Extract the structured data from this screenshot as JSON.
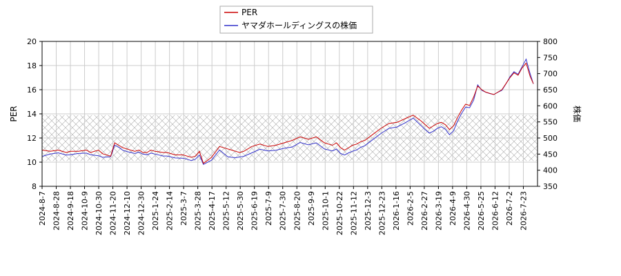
{
  "chart_data": {
    "type": "line",
    "legend": {
      "placement": "top-center"
    },
    "grid": true,
    "band": {
      "axis": "left",
      "from": 10.1,
      "to": 13.9,
      "pattern": "crosshatch"
    },
    "left_axis": {
      "label": "PER",
      "range": [
        8,
        20
      ],
      "ticks": [
        "8",
        "10",
        "12",
        "14",
        "16",
        "18",
        "20"
      ]
    },
    "right_axis": {
      "label": "株価",
      "range": [
        350,
        800
      ],
      "ticks": [
        "350",
        "400",
        "450",
        "500",
        "550",
        "600",
        "650",
        "700",
        "750",
        "800"
      ]
    },
    "x_ticks": [
      "2024-8-7",
      "2024-8-28",
      "2024-9-18",
      "2024-10-9",
      "2024-10-30",
      "2024-11-20",
      "2024-12-10",
      "2024-12-30",
      "2025-1-24",
      "2025-2-14",
      "2025-3-7",
      "2025-3-28",
      "2025-4-17",
      "2025-5-12",
      "2025-5-30",
      "2025-6-19",
      "2025-7-9",
      "2025-7-30",
      "2025-8-20",
      "2025-9-9",
      "2025-10-1",
      "2025-10-22",
      "2025-11-12",
      "2025-12-3",
      "2025-12-23",
      "2026-1-16",
      "2026-2-5",
      "2026-2-27",
      "2026-3-19",
      "2026-4-9",
      "2026-4-30",
      "2026-5-25",
      "2026-6-12",
      "2026-7-2",
      "2026-7-23"
    ],
    "series": [
      {
        "name": "PER",
        "axis": "left",
        "color": "#cc0000",
        "x": [
          0,
          10,
          20,
          30,
          35,
          45,
          55,
          60,
          70,
          75,
          85,
          90,
          95,
          100,
          105,
          115,
          120,
          125,
          130,
          135,
          140,
          150,
          155,
          165,
          175,
          180,
          185,
          190,
          195,
          200,
          210,
          220,
          230,
          235,
          240,
          245,
          250,
          260,
          270,
          280,
          290,
          300,
          310,
          320,
          330,
          340,
          350,
          355,
          360,
          365,
          370,
          375,
          380,
          385,
          390,
          395,
          400,
          410,
          420,
          430,
          440,
          450,
          460,
          470,
          475,
          480,
          485,
          490,
          495,
          500,
          505,
          510,
          515,
          520,
          525,
          530,
          535,
          540,
          545,
          550,
          555,
          560,
          565,
          570,
          575,
          580,
          585,
          590,
          595,
          600,
          605,
          609
        ],
        "values": [
          11.0,
          10.9,
          11.0,
          10.8,
          10.9,
          10.9,
          11.0,
          10.8,
          11.0,
          10.7,
          10.5,
          11.6,
          11.4,
          11.2,
          11.1,
          10.9,
          11.0,
          10.8,
          10.8,
          11.0,
          10.9,
          10.8,
          10.8,
          10.6,
          10.6,
          10.5,
          10.4,
          10.5,
          10.9,
          9.9,
          10.4,
          11.3,
          11.1,
          11.0,
          10.9,
          10.8,
          10.9,
          11.3,
          11.5,
          11.3,
          11.4,
          11.6,
          11.8,
          12.1,
          11.9,
          12.1,
          11.6,
          11.5,
          11.4,
          11.6,
          11.2,
          11.0,
          11.2,
          11.4,
          11.5,
          11.7,
          11.8,
          12.3,
          12.8,
          13.2,
          13.3,
          13.6,
          13.9,
          13.4,
          13.1,
          12.8,
          13.0,
          13.2,
          13.3,
          13.1,
          12.7,
          13.0,
          13.7,
          14.3,
          14.8,
          14.7,
          15.4,
          16.3,
          16.0,
          15.8,
          15.7,
          15.6,
          15.8,
          16.0,
          16.5,
          17.0,
          17.4,
          17.2,
          17.8,
          18.2,
          17.1,
          16.5
        ]
      },
      {
        "name": "ヤマダホールディングスの株価",
        "axis": "right",
        "color": "#3333cc",
        "x": [
          0,
          10,
          20,
          30,
          35,
          45,
          55,
          60,
          70,
          75,
          85,
          90,
          95,
          100,
          105,
          115,
          120,
          125,
          130,
          135,
          140,
          150,
          155,
          165,
          175,
          180,
          185,
          190,
          195,
          200,
          210,
          220,
          230,
          235,
          240,
          245,
          250,
          260,
          270,
          280,
          290,
          300,
          310,
          320,
          330,
          340,
          350,
          355,
          360,
          365,
          370,
          375,
          380,
          385,
          390,
          395,
          400,
          410,
          420,
          430,
          440,
          450,
          460,
          470,
          475,
          480,
          485,
          490,
          495,
          500,
          505,
          510,
          515,
          520,
          525,
          530,
          535,
          540,
          545,
          550,
          555,
          560,
          565,
          570,
          575,
          580,
          585,
          590,
          595,
          600,
          605,
          609
        ],
        "values": [
          443,
          450,
          454,
          447,
          448,
          452,
          453,
          448,
          445,
          440,
          442,
          478,
          471,
          462,
          458,
          452,
          456,
          450,
          448,
          453,
          450,
          444,
          444,
          438,
          437,
          434,
          430,
          434,
          447,
          418,
          431,
          463,
          442,
          440,
          439,
          441,
          443,
          454,
          465,
          460,
          462,
          468,
          472,
          486,
          479,
          485,
          466,
          463,
          460,
          466,
          452,
          447,
          454,
          459,
          463,
          471,
          476,
          495,
          514,
          530,
          534,
          547,
          562,
          538,
          526,
          515,
          521,
          530,
          535,
          527,
          510,
          522,
          552,
          576,
          596,
          594,
          618,
          665,
          648,
          642,
          638,
          635,
          642,
          648,
          668,
          690,
          706,
          698,
          721,
          745,
          700,
          668
        ]
      }
    ]
  }
}
